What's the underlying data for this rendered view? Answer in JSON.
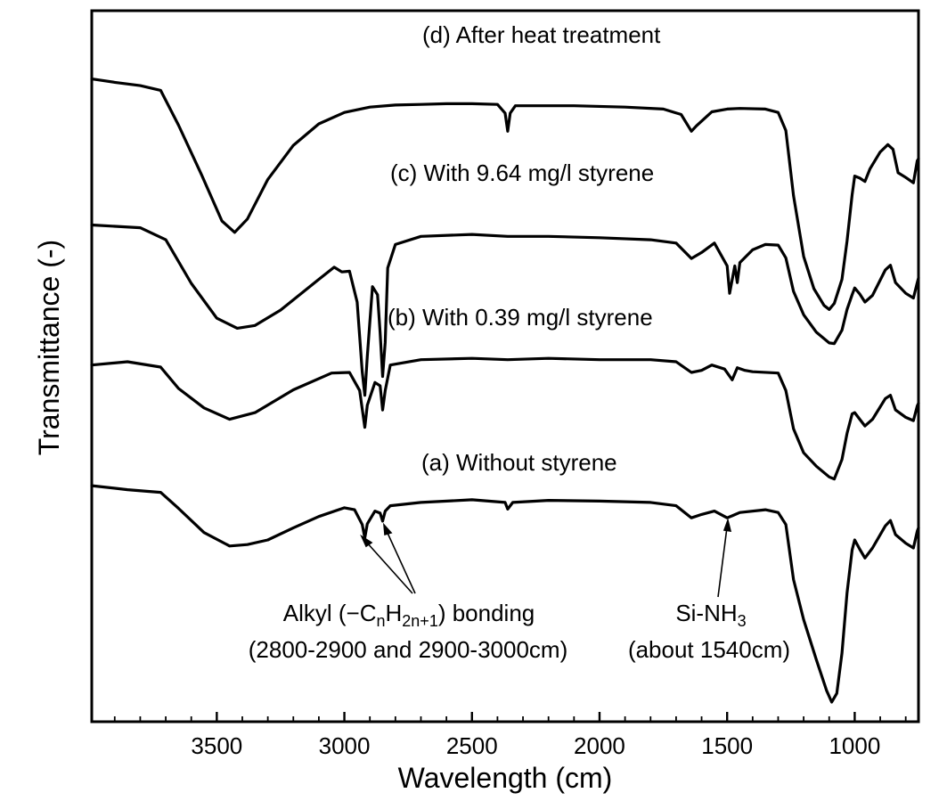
{
  "chart_data": {
    "type": "line",
    "xlabel": "Wavelength (cm)",
    "ylabel": "Transmittance (-)",
    "x_reversed": true,
    "xlim": [
      3990,
      750
    ],
    "x_ticks": [
      3500,
      3000,
      2500,
      2000,
      1500,
      1000
    ],
    "x_minor_step": 100,
    "y_ticks_labeled": false,
    "grid": false,
    "legend": "none",
    "series": [
      {
        "name": "(d) After heat treatment",
        "points": [
          [
            3990,
            0.946
          ],
          [
            3900,
            0.941
          ],
          [
            3800,
            0.936
          ],
          [
            3720,
            0.929
          ],
          [
            3650,
            0.877
          ],
          [
            3560,
            0.803
          ],
          [
            3480,
            0.734
          ],
          [
            3430,
            0.717
          ],
          [
            3380,
            0.737
          ],
          [
            3300,
            0.796
          ],
          [
            3200,
            0.847
          ],
          [
            3100,
            0.879
          ],
          [
            3000,
            0.896
          ],
          [
            2900,
            0.904
          ],
          [
            2800,
            0.907
          ],
          [
            2700,
            0.908
          ],
          [
            2600,
            0.909
          ],
          [
            2500,
            0.909
          ],
          [
            2400,
            0.908
          ],
          [
            2370,
            0.895
          ],
          [
            2360,
            0.868
          ],
          [
            2350,
            0.895
          ],
          [
            2330,
            0.906
          ],
          [
            2100,
            0.906
          ],
          [
            1900,
            0.904
          ],
          [
            1750,
            0.901
          ],
          [
            1680,
            0.893
          ],
          [
            1640,
            0.868
          ],
          [
            1620,
            0.876
          ],
          [
            1560,
            0.897
          ],
          [
            1500,
            0.901
          ],
          [
            1450,
            0.902
          ],
          [
            1350,
            0.901
          ],
          [
            1300,
            0.896
          ],
          [
            1270,
            0.869
          ],
          [
            1240,
            0.772
          ],
          [
            1200,
            0.681
          ],
          [
            1160,
            0.633
          ],
          [
            1120,
            0.608
          ],
          [
            1100,
            0.602
          ],
          [
            1080,
            0.611
          ],
          [
            1050,
            0.647
          ],
          [
            1030,
            0.704
          ],
          [
            1010,
            0.773
          ],
          [
            1000,
            0.801
          ],
          [
            980,
            0.798
          ],
          [
            960,
            0.793
          ],
          [
            940,
            0.812
          ],
          [
            900,
            0.837
          ],
          [
            870,
            0.848
          ],
          [
            850,
            0.841
          ],
          [
            830,
            0.806
          ],
          [
            800,
            0.799
          ],
          [
            770,
            0.791
          ],
          [
            755,
            0.824
          ],
          [
            750,
            0.827
          ]
        ]
      },
      {
        "name": "(c) With 9.64 mg/l styrene",
        "points": [
          [
            3990,
            0.728
          ],
          [
            3800,
            0.724
          ],
          [
            3700,
            0.706
          ],
          [
            3600,
            0.641
          ],
          [
            3500,
            0.589
          ],
          [
            3420,
            0.574
          ],
          [
            3350,
            0.578
          ],
          [
            3250,
            0.601
          ],
          [
            3100,
            0.647
          ],
          [
            3040,
            0.665
          ],
          [
            3010,
            0.658
          ],
          [
            2980,
            0.659
          ],
          [
            2950,
            0.613
          ],
          [
            2930,
            0.509
          ],
          [
            2920,
            0.474
          ],
          [
            2910,
            0.532
          ],
          [
            2890,
            0.636
          ],
          [
            2870,
            0.624
          ],
          [
            2860,
            0.567
          ],
          [
            2850,
            0.502
          ],
          [
            2840,
            0.553
          ],
          [
            2830,
            0.664
          ],
          [
            2800,
            0.699
          ],
          [
            2700,
            0.711
          ],
          [
            2500,
            0.714
          ],
          [
            2360,
            0.711
          ],
          [
            2200,
            0.711
          ],
          [
            2000,
            0.709
          ],
          [
            1800,
            0.706
          ],
          [
            1700,
            0.701
          ],
          [
            1640,
            0.678
          ],
          [
            1600,
            0.687
          ],
          [
            1550,
            0.701
          ],
          [
            1500,
            0.667
          ],
          [
            1490,
            0.626
          ],
          [
            1470,
            0.667
          ],
          [
            1460,
            0.642
          ],
          [
            1450,
            0.672
          ],
          [
            1400,
            0.691
          ],
          [
            1350,
            0.699
          ],
          [
            1300,
            0.698
          ],
          [
            1270,
            0.679
          ],
          [
            1240,
            0.629
          ],
          [
            1200,
            0.594
          ],
          [
            1150,
            0.568
          ],
          [
            1100,
            0.552
          ],
          [
            1080,
            0.551
          ],
          [
            1050,
            0.571
          ],
          [
            1030,
            0.602
          ],
          [
            1010,
            0.624
          ],
          [
            1000,
            0.634
          ],
          [
            980,
            0.625
          ],
          [
            960,
            0.613
          ],
          [
            930,
            0.623
          ],
          [
            880,
            0.661
          ],
          [
            860,
            0.668
          ],
          [
            840,
            0.642
          ],
          [
            800,
            0.626
          ],
          [
            770,
            0.619
          ],
          [
            755,
            0.642
          ],
          [
            750,
            0.649
          ]
        ]
      },
      {
        "name": "(b) With 0.39 mg/l styrene",
        "points": [
          [
            3990,
            0.519
          ],
          [
            3850,
            0.524
          ],
          [
            3720,
            0.516
          ],
          [
            3650,
            0.484
          ],
          [
            3550,
            0.455
          ],
          [
            3450,
            0.438
          ],
          [
            3350,
            0.448
          ],
          [
            3200,
            0.482
          ],
          [
            3050,
            0.507
          ],
          [
            2980,
            0.508
          ],
          [
            2940,
            0.481
          ],
          [
            2920,
            0.426
          ],
          [
            2910,
            0.459
          ],
          [
            2880,
            0.493
          ],
          [
            2860,
            0.488
          ],
          [
            2850,
            0.452
          ],
          [
            2840,
            0.481
          ],
          [
            2820,
            0.519
          ],
          [
            2700,
            0.527
          ],
          [
            2500,
            0.529
          ],
          [
            2360,
            0.527
          ],
          [
            2200,
            0.529
          ],
          [
            2000,
            0.527
          ],
          [
            1800,
            0.527
          ],
          [
            1700,
            0.524
          ],
          [
            1640,
            0.508
          ],
          [
            1600,
            0.511
          ],
          [
            1560,
            0.519
          ],
          [
            1510,
            0.513
          ],
          [
            1480,
            0.497
          ],
          [
            1460,
            0.515
          ],
          [
            1430,
            0.511
          ],
          [
            1400,
            0.509
          ],
          [
            1300,
            0.507
          ],
          [
            1270,
            0.481
          ],
          [
            1240,
            0.424
          ],
          [
            1200,
            0.388
          ],
          [
            1150,
            0.368
          ],
          [
            1100,
            0.352
          ],
          [
            1080,
            0.349
          ],
          [
            1050,
            0.378
          ],
          [
            1030,
            0.417
          ],
          [
            1010,
            0.446
          ],
          [
            1000,
            0.448
          ],
          [
            980,
            0.438
          ],
          [
            960,
            0.428
          ],
          [
            930,
            0.438
          ],
          [
            880,
            0.469
          ],
          [
            860,
            0.474
          ],
          [
            840,
            0.452
          ],
          [
            800,
            0.441
          ],
          [
            770,
            0.436
          ],
          [
            755,
            0.458
          ],
          [
            750,
            0.462
          ]
        ]
      },
      {
        "name": "(a) Without styrene",
        "points": [
          [
            3990,
            0.339
          ],
          [
            3850,
            0.333
          ],
          [
            3720,
            0.329
          ],
          [
            3650,
            0.305
          ],
          [
            3550,
            0.269
          ],
          [
            3450,
            0.249
          ],
          [
            3380,
            0.251
          ],
          [
            3300,
            0.258
          ],
          [
            3200,
            0.276
          ],
          [
            3100,
            0.293
          ],
          [
            3000,
            0.306
          ],
          [
            2960,
            0.303
          ],
          [
            2930,
            0.281
          ],
          [
            2920,
            0.261
          ],
          [
            2910,
            0.282
          ],
          [
            2880,
            0.301
          ],
          [
            2860,
            0.298
          ],
          [
            2850,
            0.286
          ],
          [
            2840,
            0.301
          ],
          [
            2820,
            0.309
          ],
          [
            2700,
            0.314
          ],
          [
            2500,
            0.318
          ],
          [
            2370,
            0.314
          ],
          [
            2360,
            0.304
          ],
          [
            2340,
            0.314
          ],
          [
            2200,
            0.317
          ],
          [
            2000,
            0.316
          ],
          [
            1800,
            0.314
          ],
          [
            1700,
            0.309
          ],
          [
            1640,
            0.291
          ],
          [
            1600,
            0.296
          ],
          [
            1550,
            0.301
          ],
          [
            1500,
            0.291
          ],
          [
            1480,
            0.294
          ],
          [
            1450,
            0.299
          ],
          [
            1350,
            0.303
          ],
          [
            1300,
            0.299
          ],
          [
            1270,
            0.281
          ],
          [
            1240,
            0.199
          ],
          [
            1200,
            0.139
          ],
          [
            1150,
            0.079
          ],
          [
            1110,
            0.033
          ],
          [
            1090,
            0.016
          ],
          [
            1070,
            0.029
          ],
          [
            1050,
            0.089
          ],
          [
            1030,
            0.179
          ],
          [
            1010,
            0.243
          ],
          [
            1000,
            0.258
          ],
          [
            980,
            0.244
          ],
          [
            960,
            0.231
          ],
          [
            930,
            0.246
          ],
          [
            880,
            0.279
          ],
          [
            860,
            0.287
          ],
          [
            840,
            0.266
          ],
          [
            800,
            0.253
          ],
          [
            770,
            0.246
          ],
          [
            755,
            0.271
          ],
          [
            750,
            0.276
          ]
        ]
      }
    ],
    "annotations": {
      "alkyl": {
        "line1_prefix": "Alkyl (−C",
        "sub_n": "n",
        "mid_h": "H",
        "sub_2n1": "2n+1",
        "line1_suffix": ") bonding",
        "line2": "(2800-2900 and 2900-3000cm)",
        "arrow_targets_x": [
          2920,
          2850
        ]
      },
      "sinh": {
        "prefix": "Si-NH",
        "sub": "3",
        "line2": "(about 1540cm)",
        "arrow_target_x": 1500
      }
    }
  }
}
